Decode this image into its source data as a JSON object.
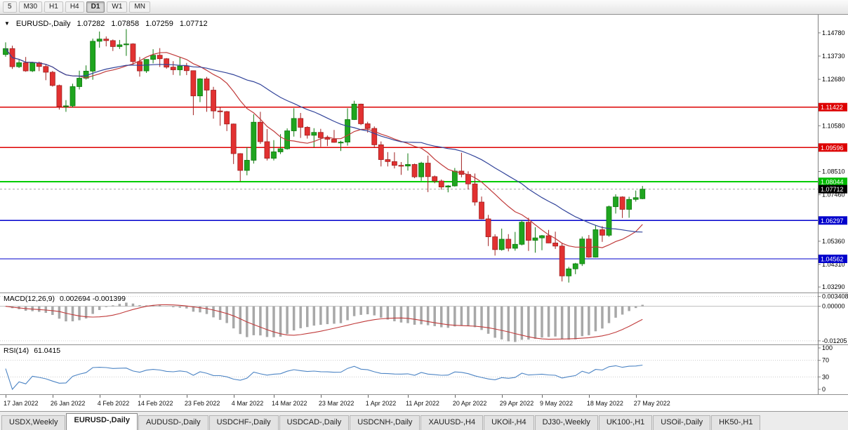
{
  "toolbar": {
    "timeframes": [
      "5",
      "M30",
      "H1",
      "H4",
      "D1",
      "W1",
      "MN"
    ],
    "active": "D1"
  },
  "chart_header": {
    "marker": "▼",
    "symbol": "EURUSD-,Daily",
    "open": "1.07282",
    "high": "1.07858",
    "low": "1.07259",
    "close": "1.07712"
  },
  "price_axis": {
    "ticks": [
      "1.14780",
      "1.13730",
      "1.12680",
      "1.10580",
      "1.08510",
      "1.07460",
      "1.05360",
      "1.04310",
      "1.03290"
    ],
    "badges": [
      {
        "value": "1.11422",
        "color": "#DD0000"
      },
      {
        "value": "1.09596",
        "color": "#DD0000"
      },
      {
        "value": "1.08044",
        "color": "#00BB00"
      },
      {
        "value": "1.07712",
        "color": "#000000"
      },
      {
        "value": "1.06297",
        "color": "#0000CC"
      },
      {
        "value": "1.04562",
        "color": "#0000CC"
      }
    ]
  },
  "chart_data": {
    "type": "candlestick",
    "title": "EURUSD-,Daily",
    "ylim": [
      1.0304,
      1.156
    ],
    "up_color": "#1FA51F",
    "down_color": "#E23131",
    "hlines": [
      {
        "value": 1.11422,
        "color": "#DD0000",
        "width": 1.4
      },
      {
        "value": 1.09596,
        "color": "#DD0000",
        "width": 1.4
      },
      {
        "value": 1.08044,
        "color": "#00CC00",
        "width": 2
      },
      {
        "value": 1.06297,
        "color": "#0000CC",
        "width": 1.4
      },
      {
        "value": 1.04562,
        "color": "#0000CC",
        "width": 1.4
      }
    ],
    "overlays": [
      {
        "name": "ma-fast",
        "period": 12,
        "color": "#C03A3A"
      },
      {
        "name": "ma-slow",
        "period": 26,
        "color": "#32449A"
      }
    ],
    "date_labels": [
      {
        "label": "17 Jan 2022",
        "index": 0
      },
      {
        "label": "26 Jan 2022",
        "index": 7
      },
      {
        "label": "4 Feb 2022",
        "index": 14
      },
      {
        "label": "14 Feb 2022",
        "index": 20
      },
      {
        "label": "23 Feb 2022",
        "index": 27
      },
      {
        "label": "4 Mar 2022",
        "index": 34
      },
      {
        "label": "14 Mar 2022",
        "index": 40
      },
      {
        "label": "23 Mar 2022",
        "index": 47
      },
      {
        "label": "1 Apr 2022",
        "index": 54
      },
      {
        "label": "11 Apr 2022",
        "index": 60
      },
      {
        "label": "20 Apr 2022",
        "index": 67
      },
      {
        "label": "29 Apr 2022",
        "index": 74
      },
      {
        "label": "9 May 2022",
        "index": 80
      },
      {
        "label": "18 May 2022",
        "index": 87
      },
      {
        "label": "27 May 2022",
        "index": 94
      }
    ],
    "candles": [
      [
        1.138,
        1.1435,
        1.137,
        1.1407
      ],
      [
        1.1407,
        1.142,
        1.1315,
        1.1325
      ],
      [
        1.1325,
        1.1356,
        1.1319,
        1.1343
      ],
      [
        1.1343,
        1.1369,
        1.1302,
        1.1306
      ],
      [
        1.1306,
        1.1347,
        1.1301,
        1.1343
      ],
      [
        1.1343,
        1.1348,
        1.1305,
        1.1326
      ],
      [
        1.1326,
        1.1335,
        1.1264,
        1.13
      ],
      [
        1.13,
        1.1306,
        1.1235,
        1.124
      ],
      [
        1.124,
        1.1244,
        1.1131,
        1.1145
      ],
      [
        1.1145,
        1.1174,
        1.1121,
        1.1148
      ],
      [
        1.1148,
        1.1248,
        1.114,
        1.1235
      ],
      [
        1.1235,
        1.1307,
        1.1222,
        1.1273
      ],
      [
        1.1273,
        1.1331,
        1.1267,
        1.1305
      ],
      [
        1.1305,
        1.1452,
        1.1266,
        1.144
      ],
      [
        1.144,
        1.1484,
        1.1411,
        1.145
      ],
      [
        1.145,
        1.1462,
        1.1417,
        1.1443
      ],
      [
        1.1443,
        1.1448,
        1.1396,
        1.1416
      ],
      [
        1.1416,
        1.1446,
        1.1405,
        1.1424
      ],
      [
        1.1424,
        1.1495,
        1.1374,
        1.1428
      ],
      [
        1.1428,
        1.1431,
        1.1331,
        1.1348
      ],
      [
        1.1348,
        1.1369,
        1.128,
        1.1306
      ],
      [
        1.1306,
        1.1359,
        1.1297,
        1.1358
      ],
      [
        1.1358,
        1.1404,
        1.134,
        1.1377
      ],
      [
        1.1377,
        1.1409,
        1.1324,
        1.1361
      ],
      [
        1.1361,
        1.1364,
        1.1316,
        1.1323
      ],
      [
        1.1323,
        1.135,
        1.1288,
        1.1311
      ],
      [
        1.1311,
        1.1368,
        1.1285,
        1.1328
      ],
      [
        1.1328,
        1.1342,
        1.1287,
        1.1307
      ],
      [
        1.1307,
        1.1308,
        1.1106,
        1.1193
      ],
      [
        1.1193,
        1.1273,
        1.1165,
        1.127
      ],
      [
        1.127,
        1.1279,
        1.1121,
        1.1219
      ],
      [
        1.1219,
        1.1234,
        1.109,
        1.1125
      ],
      [
        1.1125,
        1.1144,
        1.1058,
        1.1122
      ],
      [
        1.1122,
        1.1125,
        1.1034,
        1.1066
      ],
      [
        1.1066,
        1.1068,
        1.0885,
        1.0932
      ],
      [
        1.0932,
        1.0934,
        1.0806,
        1.0856
      ],
      [
        1.0856,
        1.0961,
        1.0834,
        1.0902
      ],
      [
        1.0902,
        1.111,
        1.0887,
        1.1074
      ],
      [
        1.1074,
        1.1121,
        1.0976,
        1.0986
      ],
      [
        1.0986,
        1.1043,
        1.0901,
        1.0911
      ],
      [
        1.0911,
        1.0993,
        1.0901,
        1.094
      ],
      [
        1.094,
        1.102,
        1.093,
        1.0954
      ],
      [
        1.0954,
        1.1046,
        1.095,
        1.1035
      ],
      [
        1.1035,
        1.1137,
        1.1009,
        1.1091
      ],
      [
        1.1091,
        1.1116,
        1.1003,
        1.1051
      ],
      [
        1.1051,
        1.1056,
        1.1,
        1.1015
      ],
      [
        1.1015,
        1.1047,
        1.0961,
        1.1028
      ],
      [
        1.1028,
        1.1044,
        1.0963,
        1.1004
      ],
      [
        1.1004,
        1.1014,
        1.0966,
        1.0997
      ],
      [
        1.0997,
        1.1039,
        1.0981,
        1.0983
      ],
      [
        1.0983,
        1.099,
        1.0944,
        1.0984
      ],
      [
        1.0984,
        1.1137,
        1.0968,
        1.1086
      ],
      [
        1.1086,
        1.1171,
        1.1084,
        1.1156
      ],
      [
        1.1156,
        1.1158,
        1.1061,
        1.1067
      ],
      [
        1.1067,
        1.1076,
        1.1027,
        1.1046
      ],
      [
        1.1046,
        1.1055,
        1.096,
        1.0972
      ],
      [
        1.0972,
        1.0987,
        1.0874,
        1.0905
      ],
      [
        1.0905,
        1.0939,
        1.0874,
        1.0896
      ],
      [
        1.0896,
        1.0938,
        1.0865,
        1.0879
      ],
      [
        1.0879,
        1.0894,
        1.0836,
        1.0876
      ],
      [
        1.0876,
        1.0933,
        1.0855,
        1.0883
      ],
      [
        1.0883,
        1.0887,
        1.0821,
        1.0827
      ],
      [
        1.0827,
        1.0895,
        1.0809,
        1.0889
      ],
      [
        1.0889,
        1.0923,
        1.0758,
        1.0828
      ],
      [
        1.0828,
        1.0833,
        1.0798,
        1.0808
      ],
      [
        1.0808,
        1.0815,
        1.0769,
        1.0781
      ],
      [
        1.0781,
        1.079,
        1.0757,
        1.0786
      ],
      [
        1.0786,
        1.0867,
        1.0783,
        1.0853
      ],
      [
        1.0853,
        1.0936,
        1.0825,
        1.0838
      ],
      [
        1.0838,
        1.0852,
        1.077,
        1.0795
      ],
      [
        1.0795,
        1.0842,
        1.0697,
        1.0713
      ],
      [
        1.0713,
        1.0738,
        1.0635,
        1.0637
      ],
      [
        1.0637,
        1.0655,
        1.0514,
        1.0556
      ],
      [
        1.0556,
        1.0567,
        1.0471,
        1.0498
      ],
      [
        1.0498,
        1.0593,
        1.0493,
        1.0545
      ],
      [
        1.0545,
        1.0568,
        1.049,
        1.0504
      ],
      [
        1.0504,
        1.0578,
        1.0493,
        1.0522
      ],
      [
        1.0522,
        1.0632,
        1.0517,
        1.0622
      ],
      [
        1.0622,
        1.0642,
        1.0492,
        1.054
      ],
      [
        1.054,
        1.0599,
        1.0484,
        1.0551
      ],
      [
        1.0551,
        1.0564,
        1.0495,
        1.0561
      ],
      [
        1.0561,
        1.0587,
        1.0527,
        1.0528
      ],
      [
        1.0528,
        1.0579,
        1.0501,
        1.0514
      ],
      [
        1.0514,
        1.0529,
        1.0354,
        1.0379
      ],
      [
        1.0379,
        1.042,
        1.0349,
        1.0411
      ],
      [
        1.0411,
        1.0438,
        1.0387,
        1.0434
      ],
      [
        1.0434,
        1.0557,
        1.0424,
        1.0546
      ],
      [
        1.0546,
        1.0564,
        1.0461,
        1.0464
      ],
      [
        1.0464,
        1.0607,
        1.0462,
        1.0588
      ],
      [
        1.0588,
        1.0604,
        1.0533,
        1.0563
      ],
      [
        1.0563,
        1.0697,
        1.0556,
        1.0692
      ],
      [
        1.0692,
        1.0748,
        1.0661,
        1.0736
      ],
      [
        1.0736,
        1.0739,
        1.0641,
        1.068
      ],
      [
        1.068,
        1.0737,
        1.0642,
        1.0725
      ],
      [
        1.0725,
        1.0765,
        1.0715,
        1.0733
      ],
      [
        1.07282,
        1.07858,
        1.07259,
        1.07712
      ]
    ]
  },
  "macd_panel": {
    "name": "MACD(12,26,9)",
    "values": "0.002694 -0.001399",
    "fast": 12,
    "slow": 26,
    "signal": 9,
    "ylim": [
      -0.0133,
      0.0048
    ],
    "levels": [
      "0.003408",
      "0.00000",
      "-0.01205"
    ],
    "hist_color": "#A8A8A8",
    "signal_color": "#C03A3A"
  },
  "rsi_panel": {
    "name": "RSI(14)",
    "value": "61.0415",
    "period": 14,
    "levels": [
      "100",
      "70",
      "30",
      "0"
    ],
    "guides": [
      70,
      30
    ],
    "line_color": "#4C84C4"
  },
  "tabs": {
    "active": 1,
    "items": [
      "USDX,Weekly",
      "EURUSD-,Daily",
      "AUDUSD-,Daily",
      "USDCHF-,Daily",
      "USDCAD-,Daily",
      "USDCNH-,Daily",
      "XAUUSD-,H4",
      "UKOil-,H4",
      "DJ30-,Weekly",
      "UK100-,H1",
      "USOil-,Daily",
      "HK50-,H1"
    ]
  }
}
